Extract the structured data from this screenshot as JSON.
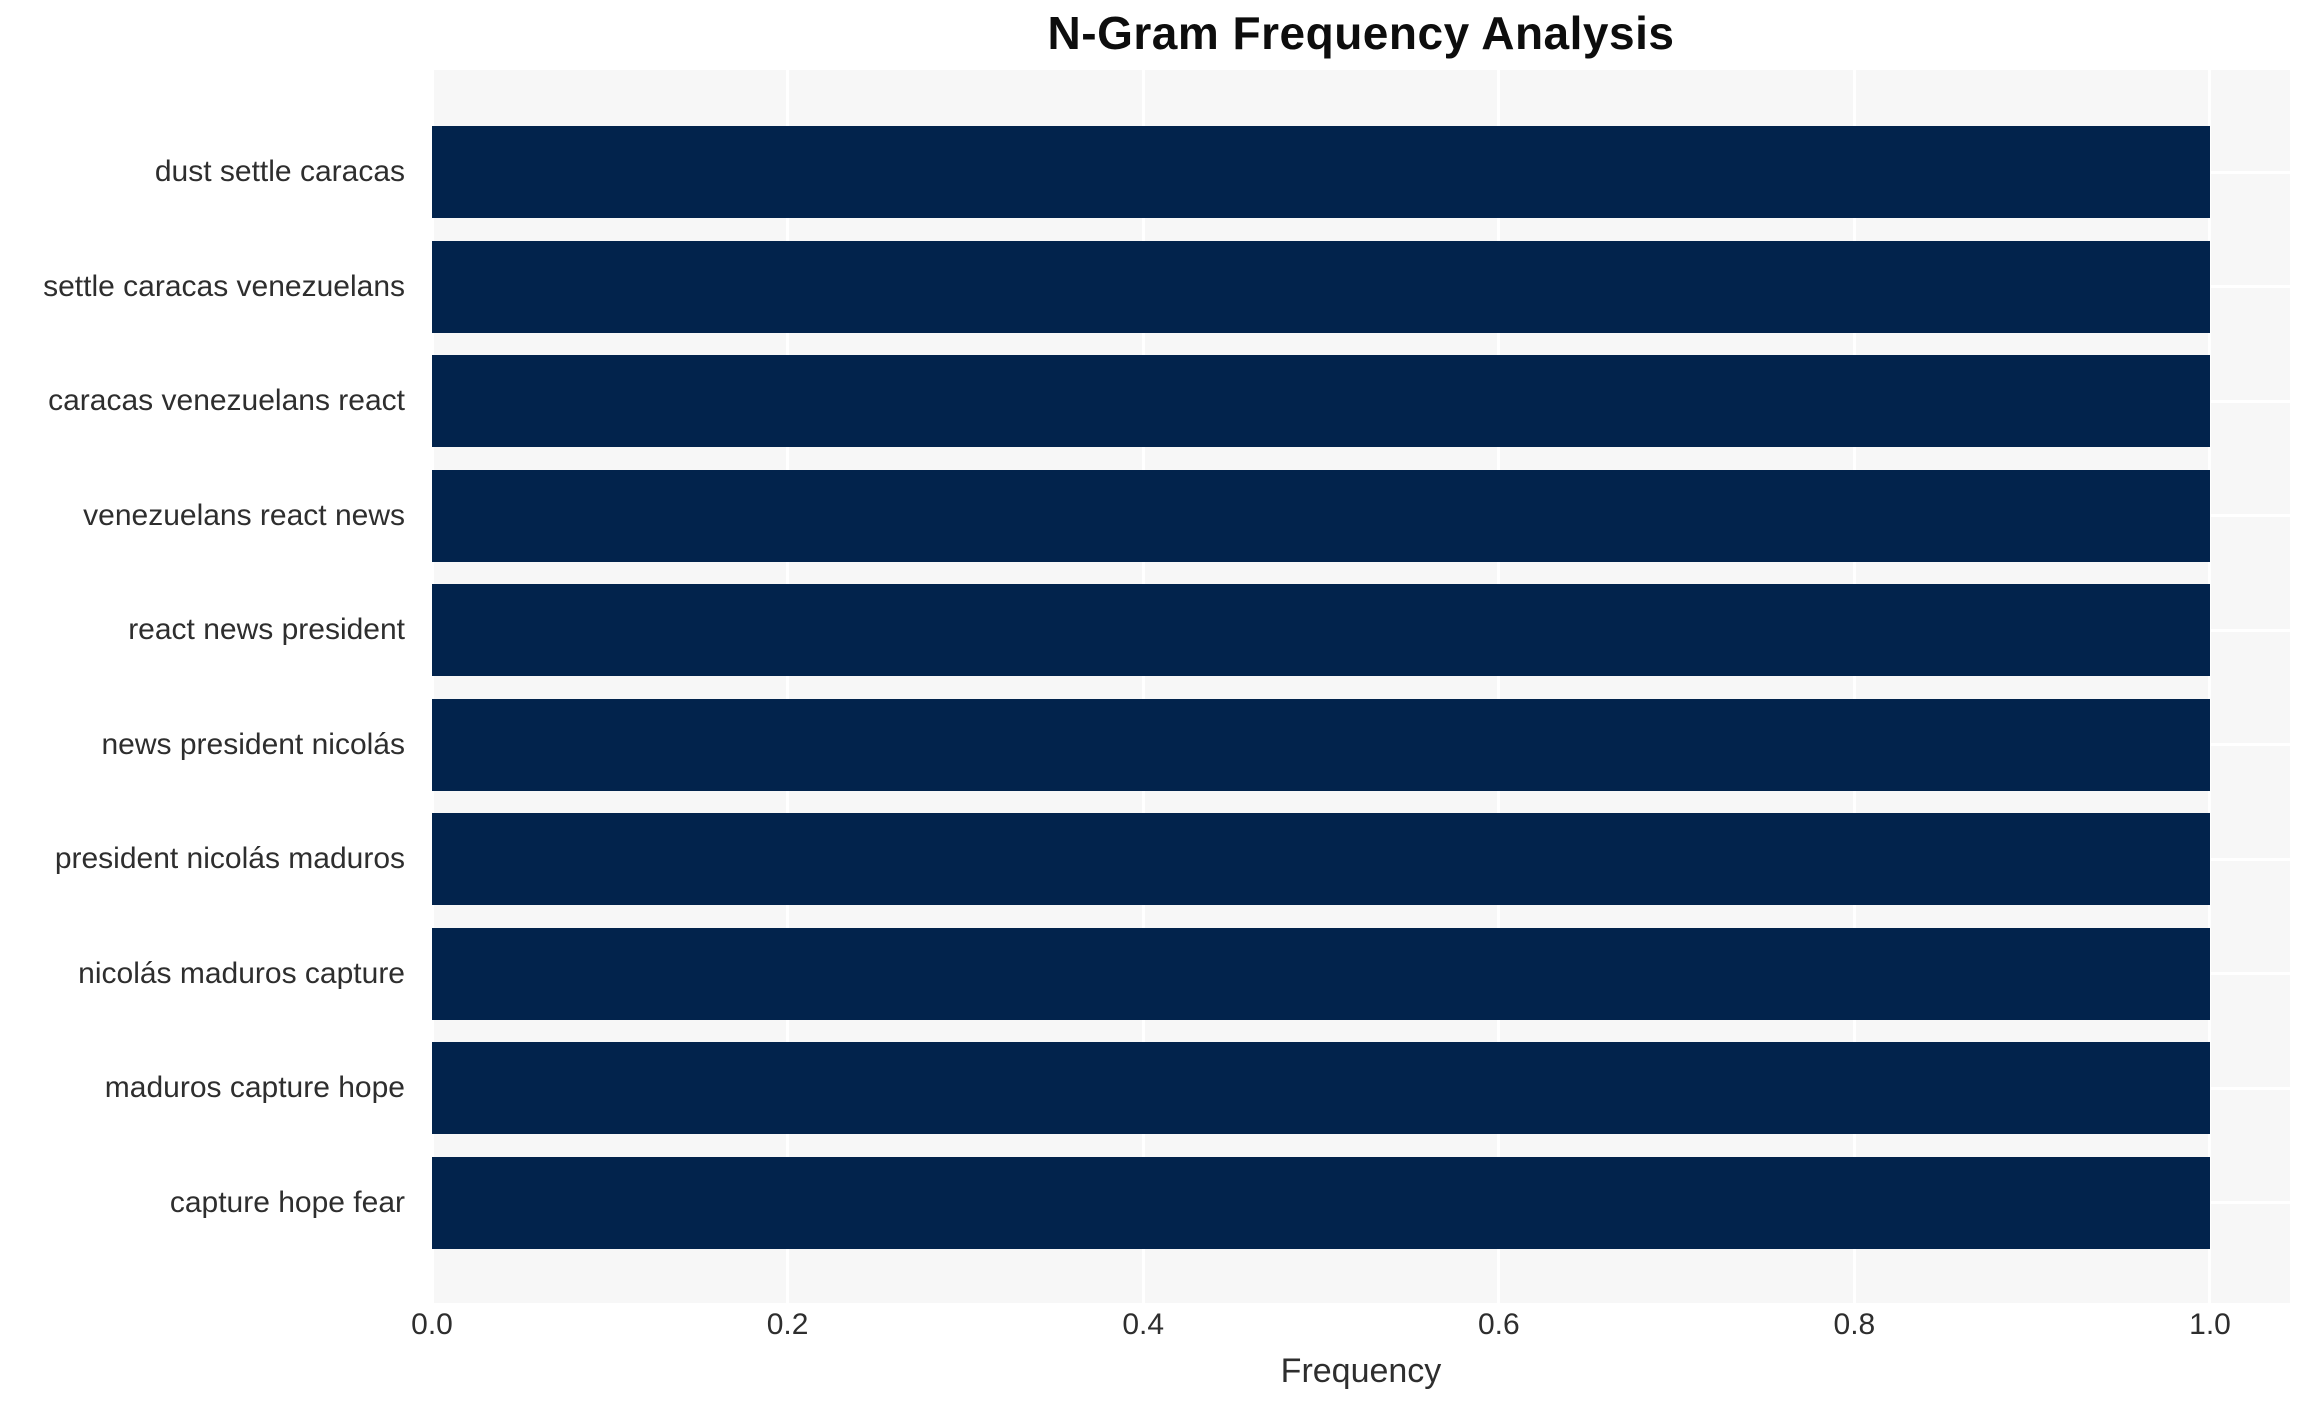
{
  "chart_data": {
    "type": "bar",
    "orientation": "horizontal",
    "title": "N-Gram Frequency Analysis",
    "xlabel": "Frequency",
    "ylabel": "",
    "categories": [
      "dust settle caracas",
      "settle caracas venezuelans",
      "caracas venezuelans react",
      "venezuelans react news",
      "react news president",
      "news president nicolás",
      "president nicolás maduros",
      "nicolás maduros capture",
      "maduros capture hope",
      "capture hope fear"
    ],
    "values": [
      1.0,
      1.0,
      1.0,
      1.0,
      1.0,
      1.0,
      1.0,
      1.0,
      1.0,
      1.0
    ],
    "xlim": [
      0.0,
      1.0
    ],
    "xticks": [
      "0.0",
      "0.2",
      "0.4",
      "0.6",
      "0.8",
      "1.0"
    ],
    "grid": true,
    "legend": "none",
    "colors": {
      "bar": "#02234c",
      "plot_background": "#f7f7f7",
      "figure_background": "#ffffff",
      "gridline": "#ffffff",
      "title_text": "#0d0d0d",
      "label_text": "#2e2e2e"
    }
  }
}
